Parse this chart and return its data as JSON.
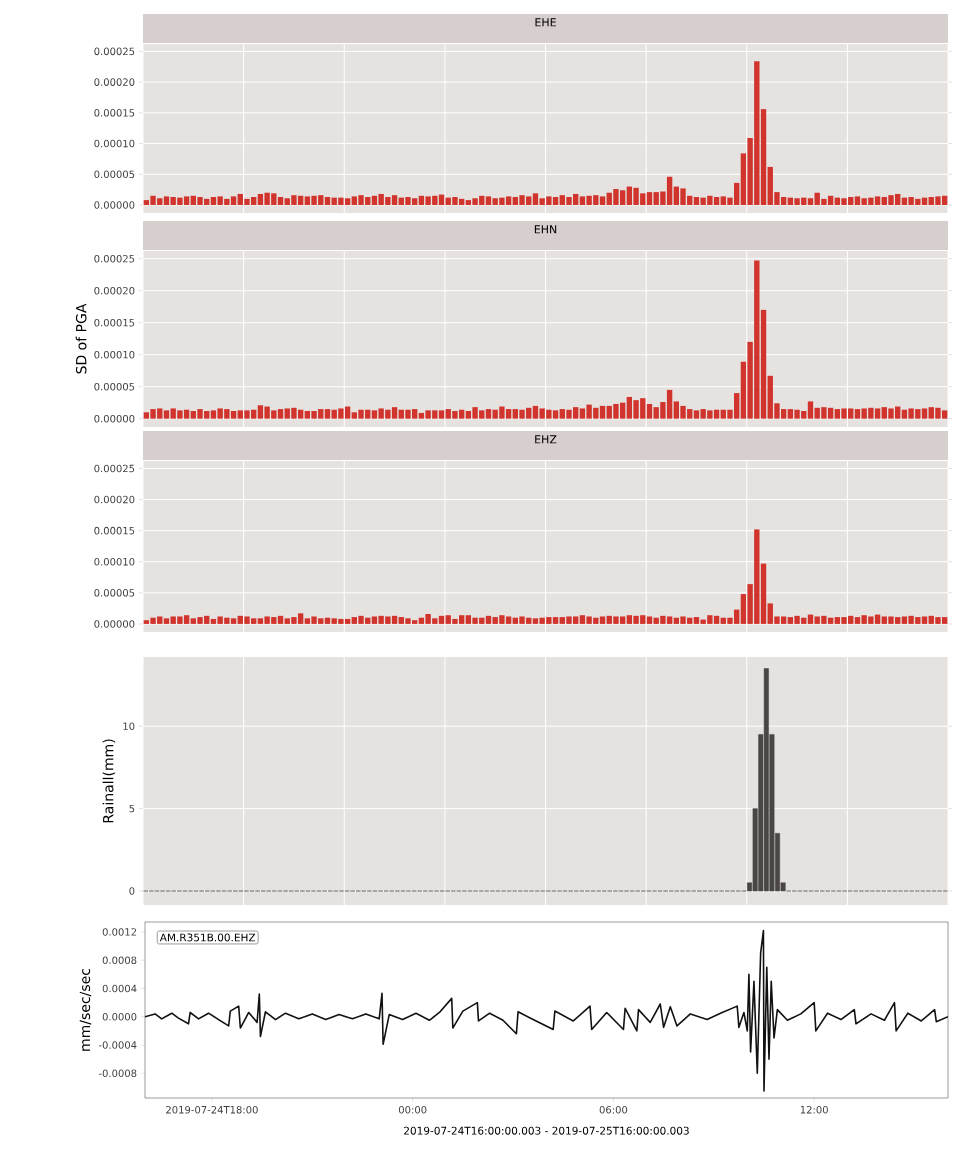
{
  "chart_data": [
    {
      "type": "bar",
      "title": "EHE",
      "categories": [
        null,
        null,
        null,
        null,
        null,
        null,
        null,
        null,
        null,
        null,
        null,
        null,
        null,
        null,
        null,
        null,
        null,
        null,
        null,
        null,
        null,
        null,
        null,
        null,
        null,
        null,
        null,
        null,
        null,
        null,
        null,
        null,
        null,
        null,
        null,
        null,
        null,
        null,
        null,
        null,
        null,
        null,
        null,
        null,
        null,
        null,
        null,
        null,
        null,
        null,
        null,
        null,
        null,
        null,
        null,
        null,
        null,
        null,
        null,
        null,
        null,
        null,
        null,
        null,
        null,
        null,
        null,
        null,
        null,
        null,
        null,
        null,
        null,
        null,
        null,
        null,
        null,
        null,
        null,
        null,
        null,
        null,
        null,
        null,
        null,
        null,
        null,
        null,
        null,
        null,
        null,
        null,
        null,
        null,
        null,
        null,
        null,
        null,
        null,
        null,
        null,
        null,
        null,
        null,
        null,
        null,
        null,
        null,
        null,
        null,
        null,
        null,
        null,
        null,
        null,
        null,
        null,
        null,
        null,
        null
      ],
      "values": [
        8e-06,
        1.5e-05,
        1.1e-05,
        1.4e-05,
        1.3e-05,
        1.2e-05,
        1.4e-05,
        1.5e-05,
        1.3e-05,
        1e-05,
        1.3e-05,
        1.4e-05,
        1e-05,
        1.4e-05,
        1.8e-05,
        1e-05,
        1.3e-05,
        1.8e-05,
        2e-05,
        1.9e-05,
        1.3e-05,
        1.1e-05,
        1.6e-05,
        1.5e-05,
        1.4e-05,
        1.5e-05,
        1.6e-05,
        1.3e-05,
        1.2e-05,
        1.2e-05,
        1.1e-05,
        1.4e-05,
        1.6e-05,
        1.3e-05,
        1.5e-05,
        1.8e-05,
        1.3e-05,
        1.6e-05,
        1.2e-05,
        1.3e-05,
        1.1e-05,
        1.5e-05,
        1.4e-05,
        1.5e-05,
        1.7e-05,
        1.2e-05,
        1.3e-05,
        1e-05,
        8e-06,
        1.1e-05,
        1.5e-05,
        1.4e-05,
        1.1e-05,
        1.2e-05,
        1.4e-05,
        1.3e-05,
        1.6e-05,
        1.4e-05,
        1.9e-05,
        1.1e-05,
        1.4e-05,
        1.3e-05,
        1.6e-05,
        1.3e-05,
        1.8e-05,
        1.4e-05,
        1.5e-05,
        1.6e-05,
        1.4e-05,
        2e-05,
        2.6e-05,
        2.4e-05,
        3e-05,
        2.8e-05,
        1.9e-05,
        2.1e-05,
        2.1e-05,
        2.2e-05,
        4.6e-05,
        3e-05,
        2.7e-05,
        1.5e-05,
        1.3e-05,
        1.2e-05,
        1.5e-05,
        1.3e-05,
        1.4e-05,
        1.2e-05,
        3.6e-05,
        8.4e-05,
        0.000109,
        0.000234,
        0.000156,
        6.2e-05,
        2.1e-05,
        1.3e-05,
        1.2e-05,
        1.1e-05,
        1.2e-05,
        1.1e-05,
        2e-05,
        1e-05,
        1.5e-05,
        1.2e-05,
        1.1e-05,
        1.3e-05,
        1.4e-05,
        1.1e-05,
        1.2e-05,
        1.4e-05,
        1.3e-05,
        1.6e-05,
        1.8e-05,
        1.2e-05,
        1.3e-05,
        1e-05,
        1.2e-05,
        1.3e-05,
        1.4e-05,
        1.5e-05
      ],
      "color": "#d0342c",
      "ylim": [
        -1.3e-05,
        0.000262
      ],
      "yticks": [
        {
          "value": 0,
          "label": "0.00000"
        },
        {
          "value": 5e-05,
          "label": "0.00005"
        },
        {
          "value": 0.0001,
          "label": "0.00010"
        },
        {
          "value": 0.00015,
          "label": "0.00015"
        },
        {
          "value": 0.0002,
          "label": "0.00020"
        },
        {
          "value": 0.00025,
          "label": "0.00025"
        }
      ],
      "grid": true,
      "tick_labels": "y"
    },
    {
      "type": "bar",
      "title": "EHN",
      "ylabel": "SD of PGA",
      "categories": [
        null,
        null,
        null,
        null,
        null,
        null,
        null,
        null,
        null,
        null,
        null,
        null,
        null,
        null,
        null,
        null,
        null,
        null,
        null,
        null,
        null,
        null,
        null,
        null,
        null,
        null,
        null,
        null,
        null,
        null,
        null,
        null,
        null,
        null,
        null,
        null,
        null,
        null,
        null,
        null,
        null,
        null,
        null,
        null,
        null,
        null,
        null,
        null,
        null,
        null,
        null,
        null,
        null,
        null,
        null,
        null,
        null,
        null,
        null,
        null,
        null,
        null,
        null,
        null,
        null,
        null,
        null,
        null,
        null,
        null,
        null,
        null,
        null,
        null,
        null,
        null,
        null,
        null,
        null,
        null,
        null,
        null,
        null,
        null,
        null,
        null,
        null,
        null,
        null,
        null,
        null,
        null,
        null,
        null,
        null,
        null,
        null,
        null,
        null,
        null,
        null,
        null,
        null,
        null,
        null,
        null,
        null,
        null,
        null,
        null,
        null,
        null,
        null,
        null,
        null,
        null,
        null,
        null,
        null,
        null
      ],
      "values": [
        1e-05,
        1.5e-05,
        1.6e-05,
        1.3e-05,
        1.6e-05,
        1.3e-05,
        1.4e-05,
        1.2e-05,
        1.5e-05,
        1.2e-05,
        1.3e-05,
        1.6e-05,
        1.5e-05,
        1.2e-05,
        1.3e-05,
        1.3e-05,
        1.4e-05,
        2.1e-05,
        1.9e-05,
        1.3e-05,
        1.5e-05,
        1.6e-05,
        1.7e-05,
        1.4e-05,
        1.2e-05,
        1.2e-05,
        1.5e-05,
        1.5e-05,
        1.4e-05,
        1.6e-05,
        1.9e-05,
        1e-05,
        1.4e-05,
        1.4e-05,
        1.3e-05,
        1.6e-05,
        1.4e-05,
        1.8e-05,
        1.4e-05,
        1.4e-05,
        1.5e-05,
        9e-06,
        1.3e-05,
        1.3e-05,
        1.3e-05,
        1.5e-05,
        1.2e-05,
        1.4e-05,
        1.2e-05,
        1.8e-05,
        1.3e-05,
        1.5e-05,
        1.4e-05,
        1.9e-05,
        1.5e-05,
        1.5e-05,
        1.4e-05,
        1.7e-05,
        2e-05,
        1.6e-05,
        1.4e-05,
        1.3e-05,
        1.5e-05,
        1.4e-05,
        1.8e-05,
        1.6e-05,
        2.2e-05,
        1.7e-05,
        2e-05,
        2e-05,
        2.3e-05,
        2.5e-05,
        3.4e-05,
        2.9e-05,
        3.2e-05,
        2.3e-05,
        1.8e-05,
        2.6e-05,
        4.5e-05,
        2.7e-05,
        2e-05,
        1.5e-05,
        1.3e-05,
        1.5e-05,
        1.3e-05,
        1.4e-05,
        1.4e-05,
        1.4e-05,
        4e-05,
        8.9e-05,
        0.00012,
        0.000247,
        0.00017,
        6.7e-05,
        2.4e-05,
        1.5e-05,
        1.5e-05,
        1.4e-05,
        1.2e-05,
        2.7e-05,
        1.7e-05,
        1.8e-05,
        1.7e-05,
        1.5e-05,
        1.6e-05,
        1.6e-05,
        1.5e-05,
        1.6e-05,
        1.7e-05,
        1.6e-05,
        1.8e-05,
        1.6e-05,
        1.9e-05,
        1.4e-05,
        1.6e-05,
        1.5e-05,
        1.6e-05,
        1.8e-05,
        1.7e-05,
        1.3e-05
      ],
      "color": "#d0342c",
      "ylim": [
        -1.3e-05,
        0.000262
      ],
      "yticks": [
        {
          "value": 0,
          "label": "0.00000"
        },
        {
          "value": 5e-05,
          "label": "0.00005"
        },
        {
          "value": 0.0001,
          "label": "0.00010"
        },
        {
          "value": 0.00015,
          "label": "0.00015"
        },
        {
          "value": 0.0002,
          "label": "0.00020"
        },
        {
          "value": 0.00025,
          "label": "0.00025"
        }
      ],
      "grid": true,
      "tick_labels": "y"
    },
    {
      "type": "bar",
      "title": "EHZ",
      "categories": [
        null,
        null,
        null,
        null,
        null,
        null,
        null,
        null,
        null,
        null,
        null,
        null,
        null,
        null,
        null,
        null,
        null,
        null,
        null,
        null,
        null,
        null,
        null,
        null,
        null,
        null,
        null,
        null,
        null,
        null,
        null,
        null,
        null,
        null,
        null,
        null,
        null,
        null,
        null,
        null,
        null,
        null,
        null,
        null,
        null,
        null,
        null,
        null,
        null,
        null,
        null,
        null,
        null,
        null,
        null,
        null,
        null,
        null,
        null,
        null,
        null,
        null,
        null,
        null,
        null,
        null,
        null,
        null,
        null,
        null,
        null,
        null,
        null,
        null,
        null,
        null,
        null,
        null,
        null,
        null,
        null,
        null,
        null,
        null,
        null,
        null,
        null,
        null,
        null,
        null,
        null,
        null,
        null,
        null,
        null,
        null,
        null,
        null,
        null,
        null,
        null,
        null,
        null,
        null,
        null,
        null,
        null,
        null,
        null,
        null,
        null,
        null,
        null,
        null,
        null,
        null,
        null,
        null,
        null,
        null
      ],
      "values": [
        6e-06,
        1e-05,
        1.2e-05,
        9e-06,
        1.2e-05,
        1.2e-05,
        1.4e-05,
        9e-06,
        1.1e-05,
        1.3e-05,
        8e-06,
        1.2e-05,
        1e-05,
        9e-06,
        1.3e-05,
        1.2e-05,
        9e-06,
        9e-06,
        1.2e-05,
        1.1e-05,
        1.3e-05,
        9e-06,
        1.1e-05,
        1.7e-05,
        9e-06,
        1.2e-05,
        9e-06,
        1e-05,
        9e-06,
        8e-06,
        8e-06,
        1.1e-05,
        1.3e-05,
        1e-05,
        1.2e-05,
        1.3e-05,
        1.2e-05,
        1.3e-05,
        1.1e-05,
        9e-06,
        6e-06,
        1e-05,
        1.6e-05,
        9e-06,
        1.3e-05,
        1.4e-05,
        8e-06,
        1.4e-05,
        1.4e-05,
        1e-05,
        1e-05,
        1.3e-05,
        1.1e-05,
        1.4e-05,
        1.2e-05,
        1e-05,
        1.2e-05,
        1e-05,
        9e-06,
        1e-05,
        1.1e-05,
        1.1e-05,
        1.1e-05,
        1.2e-05,
        1.2e-05,
        1.4e-05,
        1.2e-05,
        1e-05,
        1.2e-05,
        1.3e-05,
        1.2e-05,
        1.2e-05,
        1.4e-05,
        1.3e-05,
        1.4e-05,
        1.2e-05,
        1e-05,
        1.3e-05,
        1.2e-05,
        1e-05,
        1.2e-05,
        1e-05,
        1.1e-05,
        7e-06,
        1.4e-05,
        1.3e-05,
        1e-05,
        1e-05,
        2.3e-05,
        4.8e-05,
        6.4e-05,
        0.000152,
        9.7e-05,
        3.3e-05,
        1.2e-05,
        1.2e-05,
        1.1e-05,
        1.3e-05,
        1e-05,
        1.5e-05,
        1.2e-05,
        1.3e-05,
        1e-05,
        1.1e-05,
        1.1e-05,
        1.3e-05,
        1.1e-05,
        1.4e-05,
        1.2e-05,
        1.5e-05,
        1.2e-05,
        1.2e-05,
        1.1e-05,
        1.2e-05,
        1.3e-05,
        1.1e-05,
        1.2e-05,
        1.3e-05,
        1.1e-05,
        1.1e-05
      ],
      "color": "#d0342c",
      "ylim": [
        -1.3e-05,
        0.000262
      ],
      "yticks": [
        {
          "value": 0,
          "label": "0.00000"
        },
        {
          "value": 5e-05,
          "label": "0.00005"
        },
        {
          "value": 0.0001,
          "label": "0.00010"
        },
        {
          "value": 0.00015,
          "label": "0.00015"
        },
        {
          "value": 0.0002,
          "label": "0.00020"
        },
        {
          "value": 0.00025,
          "label": "0.00025"
        }
      ],
      "grid": true,
      "tick_labels": "y"
    },
    {
      "type": "bar",
      "ylabel": "Rainall(mm)",
      "categories": [
        null,
        null,
        null,
        null,
        null,
        null,
        null,
        null,
        null,
        null,
        null,
        null,
        null,
        null,
        null,
        null,
        null,
        null,
        null,
        null,
        null,
        null,
        null,
        null,
        null,
        null,
        null,
        null,
        null,
        null,
        null,
        null,
        null,
        null,
        null,
        null,
        null,
        null,
        null,
        null,
        null,
        null,
        null,
        null,
        null,
        null,
        null,
        null,
        null,
        null,
        null,
        null,
        null,
        null,
        null,
        null,
        null,
        null,
        null,
        null,
        null,
        null,
        null,
        null,
        null,
        null,
        null,
        null,
        null,
        null,
        null,
        null,
        null,
        null,
        null,
        null,
        null,
        null,
        null,
        null,
        null,
        null,
        null,
        null,
        null,
        null,
        null,
        null,
        null,
        null,
        null,
        null,
        null,
        null,
        null,
        null,
        null,
        null,
        null,
        null,
        null,
        null,
        null,
        null,
        null,
        null,
        null,
        null,
        null,
        null,
        null,
        null,
        null,
        null,
        null,
        null,
        null,
        null,
        null,
        null,
        null,
        null,
        null,
        null,
        null,
        null,
        null,
        null,
        null,
        null,
        null,
        null,
        null,
        null,
        null,
        null,
        null,
        null,
        null,
        null,
        null,
        null,
        null,
        null
      ],
      "values": [
        0,
        0,
        0,
        0,
        0,
        0,
        0,
        0,
        0,
        0,
        0,
        0,
        0,
        0,
        0,
        0,
        0,
        0,
        0,
        0,
        0,
        0,
        0,
        0,
        0,
        0,
        0,
        0,
        0,
        0,
        0,
        0,
        0,
        0,
        0,
        0,
        0,
        0,
        0,
        0,
        0,
        0,
        0,
        0,
        0,
        0,
        0,
        0,
        0,
        0,
        0,
        0,
        0,
        0,
        0,
        0,
        0,
        0,
        0,
        0,
        0,
        0,
        0,
        0,
        0,
        0,
        0,
        0,
        0,
        0,
        0,
        0,
        0,
        0,
        0,
        0,
        0,
        0,
        0,
        0,
        0,
        0,
        0,
        0,
        0,
        0,
        0,
        0,
        0,
        0,
        0,
        0,
        0,
        0,
        0,
        0,
        0,
        0,
        0,
        0,
        0,
        0,
        0,
        0,
        0,
        0,
        0,
        0,
        0.5,
        5,
        9.5,
        13.5,
        9.5,
        3.5,
        0.5,
        0,
        0,
        0,
        0,
        0,
        0,
        0,
        0,
        0,
        0,
        0,
        0,
        0,
        0,
        0,
        0,
        0,
        0,
        0,
        0,
        0,
        0,
        0,
        0,
        0,
        0,
        0,
        0,
        0
      ],
      "color": "#4a4645",
      "ylim": [
        -0.85,
        14.2
      ],
      "yticks": [
        0,
        5,
        10
      ],
      "grid": true,
      "tick_labels": "y"
    },
    {
      "type": "line",
      "ylabel": "mm/sec/sec",
      "xlabel": "2019-07-24T16:00:00.003  -  2019-07-25T16:00:00.003",
      "annotations": [
        "AM.R351B.00.EHZ"
      ],
      "x": [
        "2019-07-24T16:00",
        "2019-07-24T16:18",
        "2019-07-24T16:30",
        "2019-07-24T16:48",
        "2019-07-24T17:00",
        "2019-07-24T17:18",
        "2019-07-24T17:21",
        "2019-07-24T17:36",
        "2019-07-24T17:54",
        "2019-07-24T18:12",
        "2019-07-24T18:30",
        "2019-07-24T18:33",
        "2019-07-24T18:48",
        "2019-07-24T18:51",
        "2019-07-24T19:06",
        "2019-07-24T19:21",
        "2019-07-24T19:25",
        "2019-07-24T19:27",
        "2019-07-24T19:36",
        "2019-07-24T19:54",
        "2019-07-24T20:12",
        "2019-07-24T20:36",
        "2019-07-24T21:00",
        "2019-07-24T21:24",
        "2019-07-24T21:48",
        "2019-07-24T22:12",
        "2019-07-24T22:36",
        "2019-07-24T23:00",
        "2019-07-24T23:05",
        "2019-07-24T23:07",
        "2019-07-24T23:18",
        "2019-07-24T23:42",
        "2019-07-25T00:06",
        "2019-07-25T00:30",
        "2019-07-25T00:48",
        "2019-07-25T01:10",
        "2019-07-25T01:12",
        "2019-07-25T01:30",
        "2019-07-25T01:56",
        "2019-07-25T01:58",
        "2019-07-25T02:18",
        "2019-07-25T02:42",
        "2019-07-25T03:06",
        "2019-07-25T03:09",
        "2019-07-25T03:36",
        "2019-07-25T04:12",
        "2019-07-25T04:15",
        "2019-07-25T04:48",
        "2019-07-25T05:18",
        "2019-07-25T05:21",
        "2019-07-25T05:48",
        "2019-07-25T06:18",
        "2019-07-25T06:21",
        "2019-07-25T06:42",
        "2019-07-25T06:45",
        "2019-07-25T07:06",
        "2019-07-25T07:24",
        "2019-07-25T07:30",
        "2019-07-25T07:42",
        "2019-07-25T07:54",
        "2019-07-25T08:18",
        "2019-07-25T08:48",
        "2019-07-25T09:12",
        "2019-07-25T09:42",
        "2019-07-25T09:45",
        "2019-07-25T09:54",
        "2019-07-25T10:00",
        "2019-07-25T10:03",
        "2019-07-25T10:06",
        "2019-07-25T10:12",
        "2019-07-25T10:18",
        "2019-07-25T10:24",
        "2019-07-25T10:29",
        "2019-07-25T10:30",
        "2019-07-25T10:35",
        "2019-07-25T10:39",
        "2019-07-25T10:43",
        "2019-07-25T10:48",
        "2019-07-25T10:54",
        "2019-07-25T11:12",
        "2019-07-25T11:36",
        "2019-07-25T12:00",
        "2019-07-25T12:03",
        "2019-07-25T12:24",
        "2019-07-25T12:48",
        "2019-07-25T13:12",
        "2019-07-25T13:15",
        "2019-07-25T13:42",
        "2019-07-25T14:06",
        "2019-07-25T14:24",
        "2019-07-25T14:27",
        "2019-07-25T14:48",
        "2019-07-25T15:12",
        "2019-07-25T15:36",
        "2019-07-25T15:39",
        "2019-07-25T16:00"
      ],
      "values": [
        0.0,
        4e-05,
        -3e-05,
        5e-05,
        -2e-05,
        -0.0001,
        6e-05,
        -3e-05,
        5e-05,
        -4e-05,
        -0.00013,
        8e-05,
        0.00015,
        -0.00016,
        6e-05,
        -8e-05,
        0.00032,
        -0.00028,
        7e-05,
        -4e-05,
        5e-05,
        -3e-05,
        4e-05,
        -4e-05,
        3e-05,
        -3e-05,
        4e-05,
        -3e-05,
        0.00033,
        -0.00039,
        3e-05,
        -4e-05,
        5e-05,
        -5e-05,
        6e-05,
        0.00026,
        -0.00016,
        8e-05,
        0.0002,
        -6e-05,
        5e-05,
        -5e-05,
        -0.00024,
        7e-05,
        -4e-05,
        -0.00018,
        8e-05,
        -6e-05,
        0.00015,
        -0.00018,
        6e-05,
        -0.00018,
        0.00012,
        -0.0002,
        0.0001,
        -8e-05,
        0.00018,
        -0.00015,
        0.00014,
        -0.00013,
        4e-05,
        -4e-05,
        5e-05,
        0.00015,
        -0.00015,
        6e-05,
        -0.0002,
        0.0006,
        -0.0005,
        0.0005,
        -0.0008,
        0.0009,
        0.00122,
        -0.00105,
        0.0007,
        -0.0006,
        0.0005,
        -0.0003,
        0.0001,
        -5e-05,
        4e-05,
        0.0002,
        -0.0002,
        5e-05,
        -4e-05,
        0.0001,
        -0.0001,
        4e-05,
        -5e-05,
        0.0002,
        -0.0002,
        5e-05,
        -6e-05,
        0.0001,
        -7e-05,
        0.0
      ],
      "color": "#111111",
      "xlim": [
        "2019-07-24T16:00",
        "2019-07-25T16:00"
      ],
      "xticks": [
        {
          "value": "2019-07-24T18:00",
          "label": "2019-07-24T18:00"
        },
        {
          "value": "2019-07-25T00:00",
          "label": "00:00"
        },
        {
          "value": "2019-07-25T06:00",
          "label": "06:00"
        },
        {
          "value": "2019-07-25T12:00",
          "label": "12:00"
        }
      ],
      "ylim": [
        -0.00115,
        0.00134
      ],
      "yticks": [
        {
          "value": -0.0008,
          "label": "-0.0008"
        },
        {
          "value": -0.0004,
          "label": "-0.0004"
        },
        {
          "value": 0,
          "label": "0.0000"
        },
        {
          "value": 0.0004,
          "label": "0.0004"
        },
        {
          "value": 0.0008,
          "label": "0.0008"
        },
        {
          "value": 0.0012,
          "label": "0.0012"
        }
      ]
    }
  ]
}
